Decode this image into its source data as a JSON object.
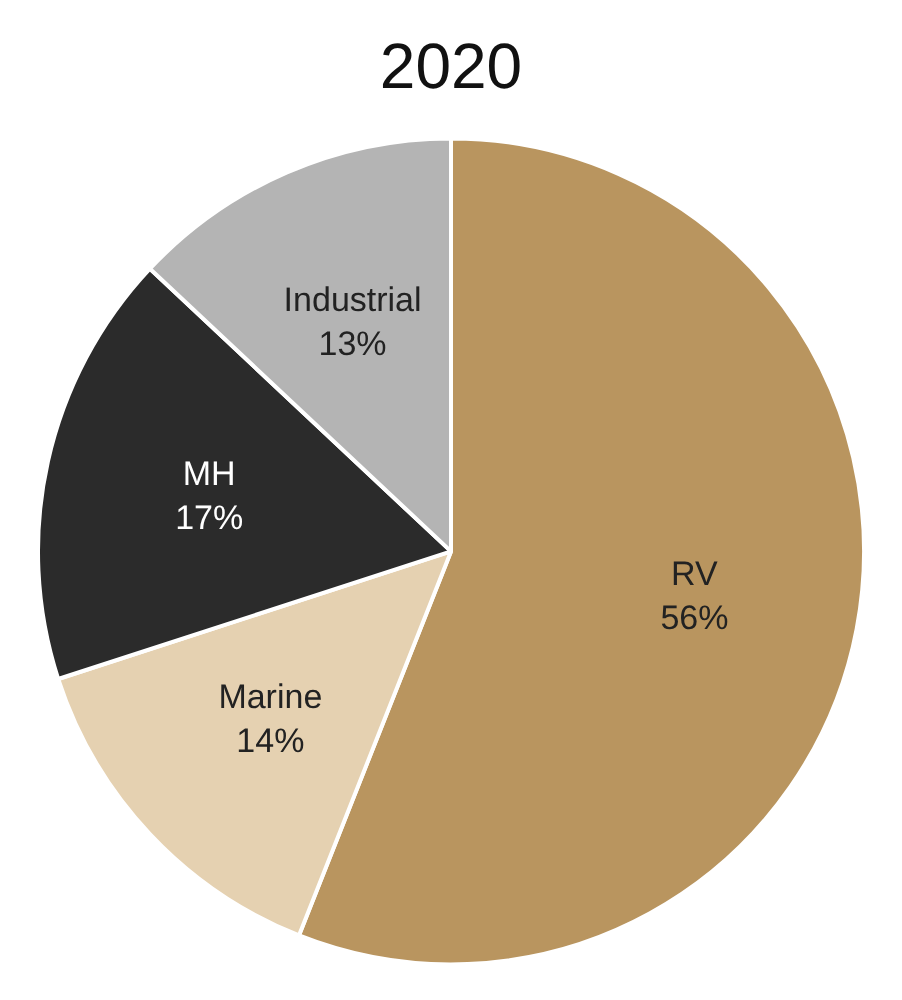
{
  "chart_data": {
    "type": "pie",
    "title": "2020",
    "categories": [
      "RV",
      "Marine",
      "MH",
      "Industrial"
    ],
    "values": [
      56,
      14,
      17,
      13
    ],
    "value_labels": [
      "56%",
      "14%",
      "17%",
      "13%"
    ],
    "colors": [
      "#b9955f",
      "#e5d1b1",
      "#2b2b2b",
      "#b4b4b4"
    ],
    "legend": false
  }
}
